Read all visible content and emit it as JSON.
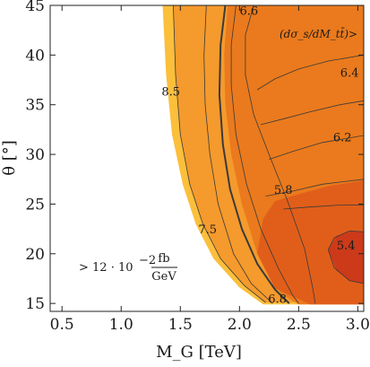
{
  "chart_data": {
    "type": "contour",
    "xlabel": "M_G [TeV]",
    "ylabel": "θ [°]",
    "xlim": [
      0.4,
      3.05
    ],
    "ylim": [
      14.2,
      45
    ],
    "x_ticks": [
      "0.5",
      "1.0",
      "1.5",
      "2.0",
      "2.5",
      "3.0"
    ],
    "y_ticks": [
      "15",
      "20",
      "25",
      "30",
      "35",
      "40",
      "45"
    ],
    "annotation": "(dσ_s/dM_tt̄)>",
    "excluded_region_label": "> 12 · 10^-2 fb/GeV",
    "excluded_note": {
      "prefix": "> 12 · 10",
      "exp": "−2",
      "num": "fb",
      "den": "GeV"
    },
    "contour_labels": [
      {
        "text": "6.6",
        "x": 2.08,
        "y": 44.4
      },
      {
        "text": "6.4",
        "x": 2.93,
        "y": 38.2
      },
      {
        "text": "6.2",
        "x": 2.87,
        "y": 31.7
      },
      {
        "text": "5.8",
        "x": 2.37,
        "y": 26.4
      },
      {
        "text": "5.4",
        "x": 2.9,
        "y": 20.8
      },
      {
        "text": "8.5",
        "x": 1.42,
        "y": 36.3
      },
      {
        "text": "7.5",
        "x": 1.73,
        "y": 22.4
      },
      {
        "text": "6.8",
        "x": 2.32,
        "y": 15.4
      }
    ],
    "colors": {
      "light": "#fbbf3c",
      "mid": "#f59a2c",
      "dark": "#ea7a1d",
      "darker": "#e05e1a",
      "darkest": "#cc3a1a",
      "contour": "#3a3a3a"
    },
    "grid": false
  }
}
